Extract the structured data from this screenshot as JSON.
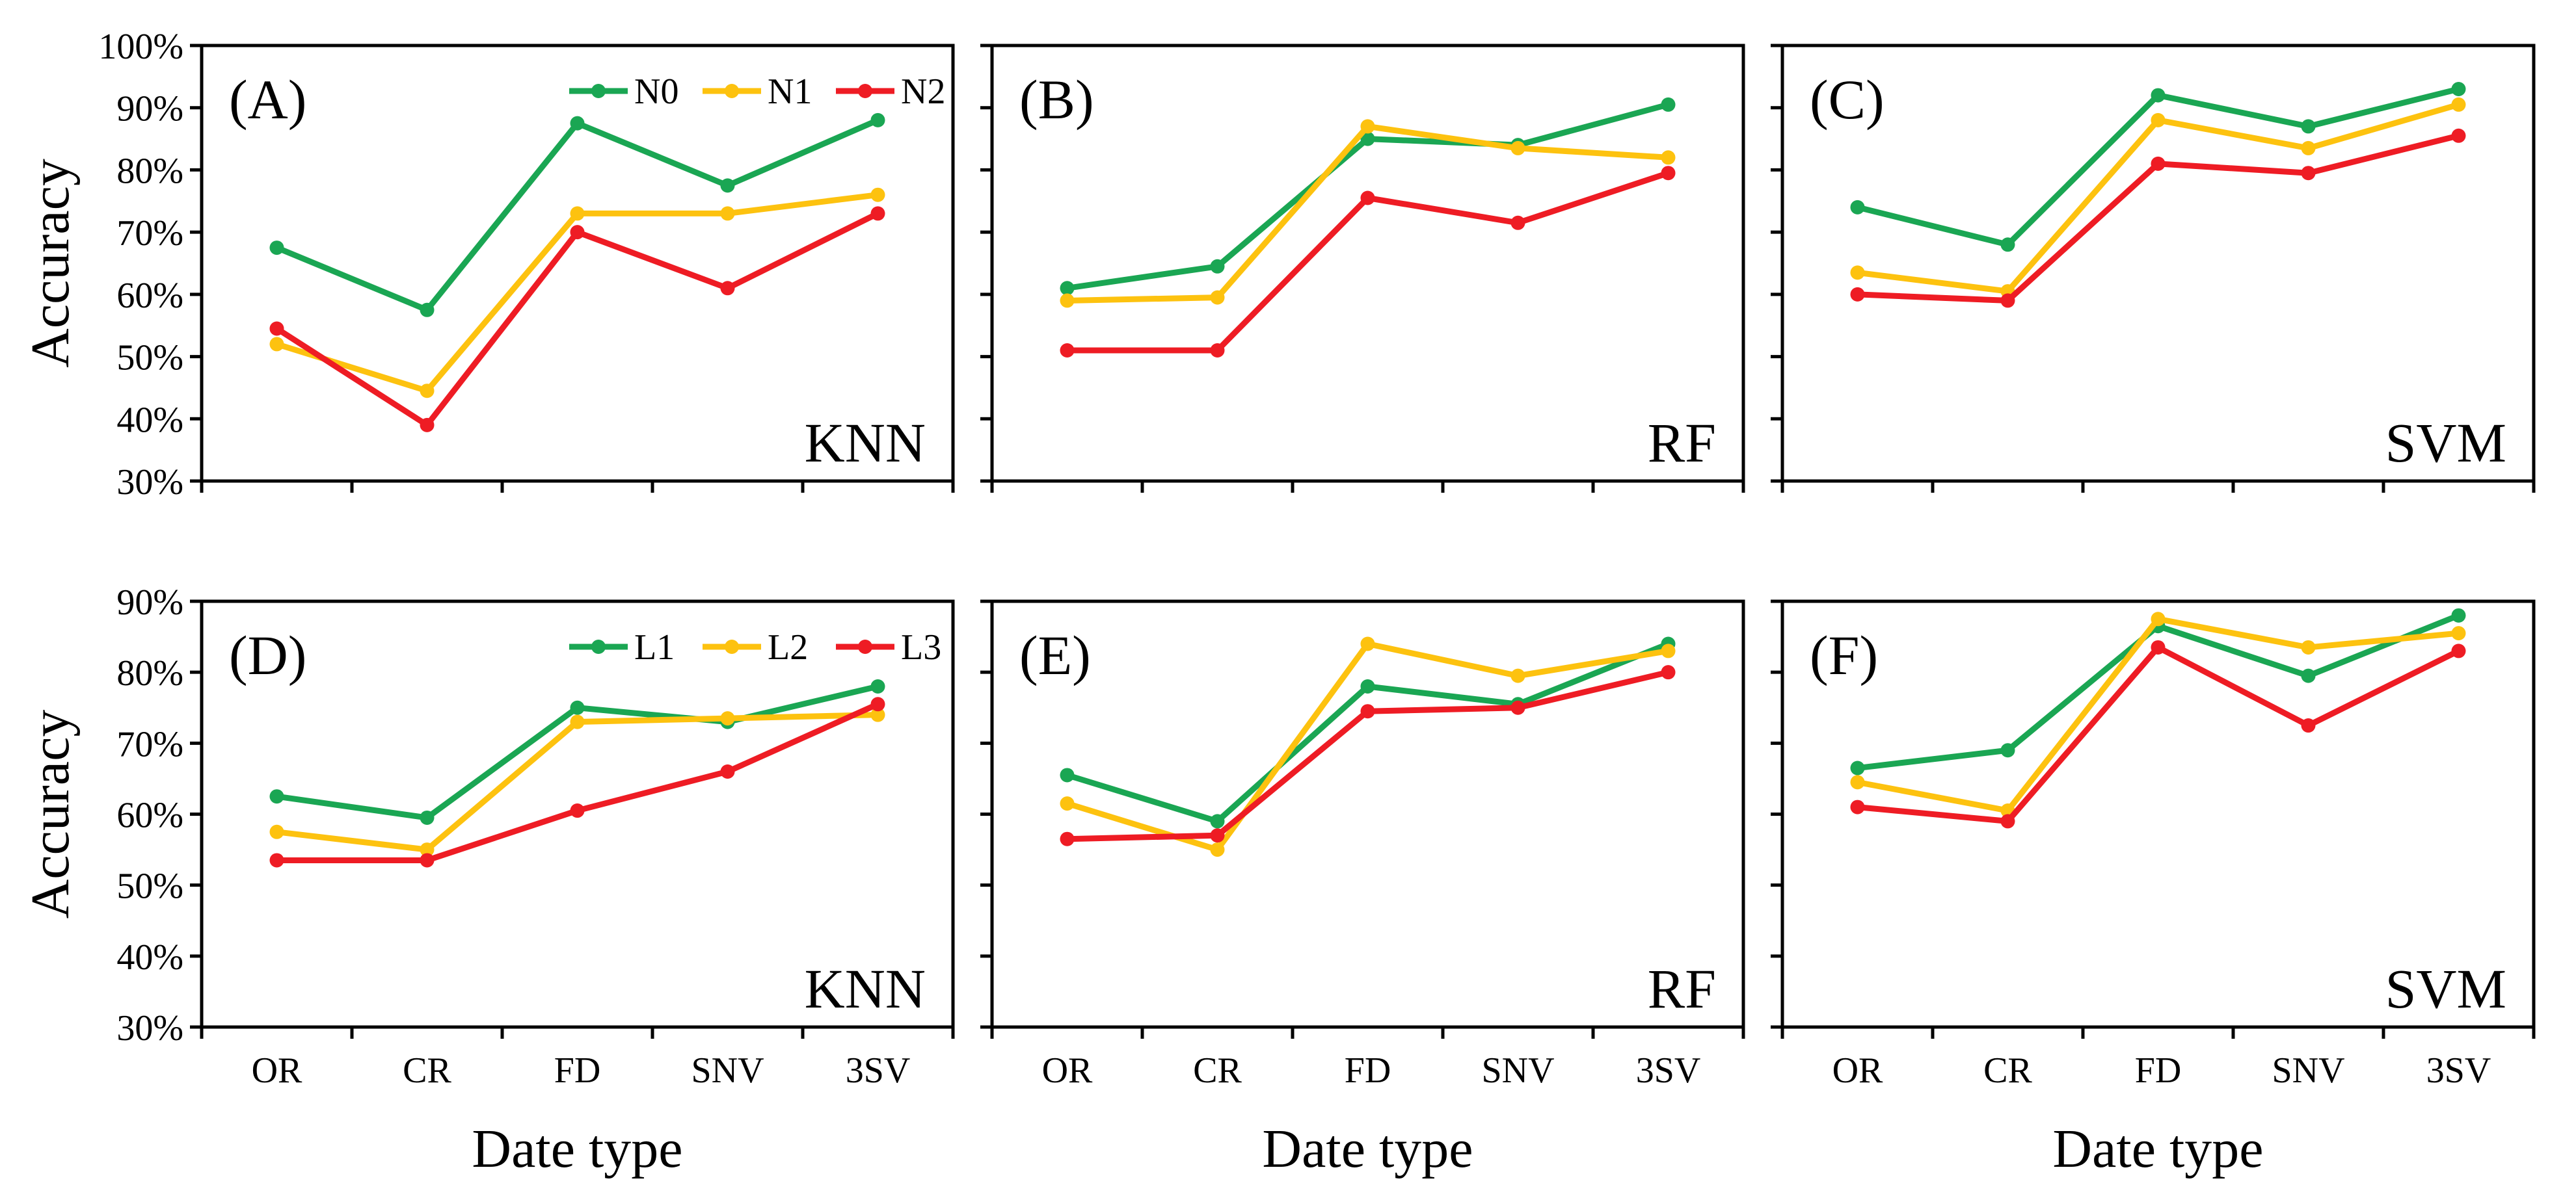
{
  "figure": {
    "y_axis_label": "Accuracy",
    "x_axis_label": "Date type"
  },
  "series_colors": {
    "green": "#1aa653",
    "yellow": "#fdc20f",
    "red": "#ee1c24"
  },
  "chart_data": [
    {
      "type": "line",
      "panel": "(A)",
      "model": "KNN",
      "categories": [
        "OR",
        "CR",
        "FD",
        "SNV",
        "3SV"
      ],
      "ylim": [
        30,
        100
      ],
      "yticks": [
        "30%",
        "40%",
        "50%",
        "60%",
        "70%",
        "80%",
        "90%",
        "100%"
      ],
      "ylabel": "Accuracy",
      "xlabel": "",
      "legend": "top-right",
      "series": [
        {
          "name": "N0",
          "color": "green",
          "values": [
            67.5,
            57.5,
            87.5,
            77.5,
            88.0
          ]
        },
        {
          "name": "N1",
          "color": "yellow",
          "values": [
            52.0,
            44.5,
            73.0,
            73.0,
            76.0
          ]
        },
        {
          "name": "N2",
          "color": "red",
          "values": [
            54.5,
            39.0,
            70.0,
            61.0,
            73.0
          ]
        }
      ]
    },
    {
      "type": "line",
      "panel": "(B)",
      "model": "RF",
      "categories": [
        "OR",
        "CR",
        "FD",
        "SNV",
        "3SV"
      ],
      "ylim": [
        30,
        100
      ],
      "yticks": [],
      "series": [
        {
          "name": "N0",
          "color": "green",
          "values": [
            61.0,
            64.5,
            85.0,
            84.0,
            90.5
          ]
        },
        {
          "name": "N1",
          "color": "yellow",
          "values": [
            59.0,
            59.5,
            87.0,
            83.5,
            82.0
          ]
        },
        {
          "name": "N2",
          "color": "red",
          "values": [
            51.0,
            51.0,
            75.5,
            71.5,
            79.5
          ]
        }
      ]
    },
    {
      "type": "line",
      "panel": "(C)",
      "model": "SVM",
      "categories": [
        "OR",
        "CR",
        "FD",
        "SNV",
        "3SV"
      ],
      "ylim": [
        30,
        100
      ],
      "yticks": [],
      "series": [
        {
          "name": "N0",
          "color": "green",
          "values": [
            74.0,
            68.0,
            92.0,
            87.0,
            93.0
          ]
        },
        {
          "name": "N1",
          "color": "yellow",
          "values": [
            63.5,
            60.5,
            88.0,
            83.5,
            90.5
          ]
        },
        {
          "name": "N2",
          "color": "red",
          "values": [
            60.0,
            59.0,
            81.0,
            79.5,
            85.5
          ]
        }
      ]
    },
    {
      "type": "line",
      "panel": "(D)",
      "model": "KNN",
      "categories": [
        "OR",
        "CR",
        "FD",
        "SNV",
        "3SV"
      ],
      "ylim": [
        30,
        90
      ],
      "yticks": [
        "30%",
        "40%",
        "50%",
        "60%",
        "70%",
        "80%",
        "90%"
      ],
      "ylabel": "Accuracy",
      "xlabel": "Date type",
      "legend": "top-right",
      "series": [
        {
          "name": "L1",
          "color": "green",
          "values": [
            62.5,
            59.5,
            75.0,
            73.0,
            78.0
          ]
        },
        {
          "name": "L2",
          "color": "yellow",
          "values": [
            57.5,
            55.0,
            73.0,
            73.5,
            74.0
          ]
        },
        {
          "name": "L3",
          "color": "red",
          "values": [
            53.5,
            53.5,
            60.5,
            66.0,
            75.5
          ]
        }
      ]
    },
    {
      "type": "line",
      "panel": "(E)",
      "model": "RF",
      "categories": [
        "OR",
        "CR",
        "FD",
        "SNV",
        "3SV"
      ],
      "ylim": [
        30,
        90
      ],
      "yticks": [],
      "xlabel": "Date type",
      "series": [
        {
          "name": "L1",
          "color": "green",
          "values": [
            65.5,
            59.0,
            78.0,
            75.5,
            84.0
          ]
        },
        {
          "name": "L2",
          "color": "yellow",
          "values": [
            61.5,
            55.0,
            84.0,
            79.5,
            83.0
          ]
        },
        {
          "name": "L3",
          "color": "red",
          "values": [
            56.5,
            57.0,
            74.5,
            75.0,
            80.0
          ]
        }
      ]
    },
    {
      "type": "line",
      "panel": "(F)",
      "model": "SVM",
      "categories": [
        "OR",
        "CR",
        "FD",
        "SNV",
        "3SV"
      ],
      "ylim": [
        30,
        90
      ],
      "yticks": [],
      "xlabel": "Date type",
      "series": [
        {
          "name": "L1",
          "color": "green",
          "values": [
            66.5,
            69.0,
            86.5,
            79.5,
            88.0
          ]
        },
        {
          "name": "L2",
          "color": "yellow",
          "values": [
            64.5,
            60.5,
            87.5,
            83.5,
            85.5
          ]
        },
        {
          "name": "L3",
          "color": "red",
          "values": [
            61.0,
            59.0,
            83.5,
            72.5,
            83.0
          ]
        }
      ]
    }
  ]
}
